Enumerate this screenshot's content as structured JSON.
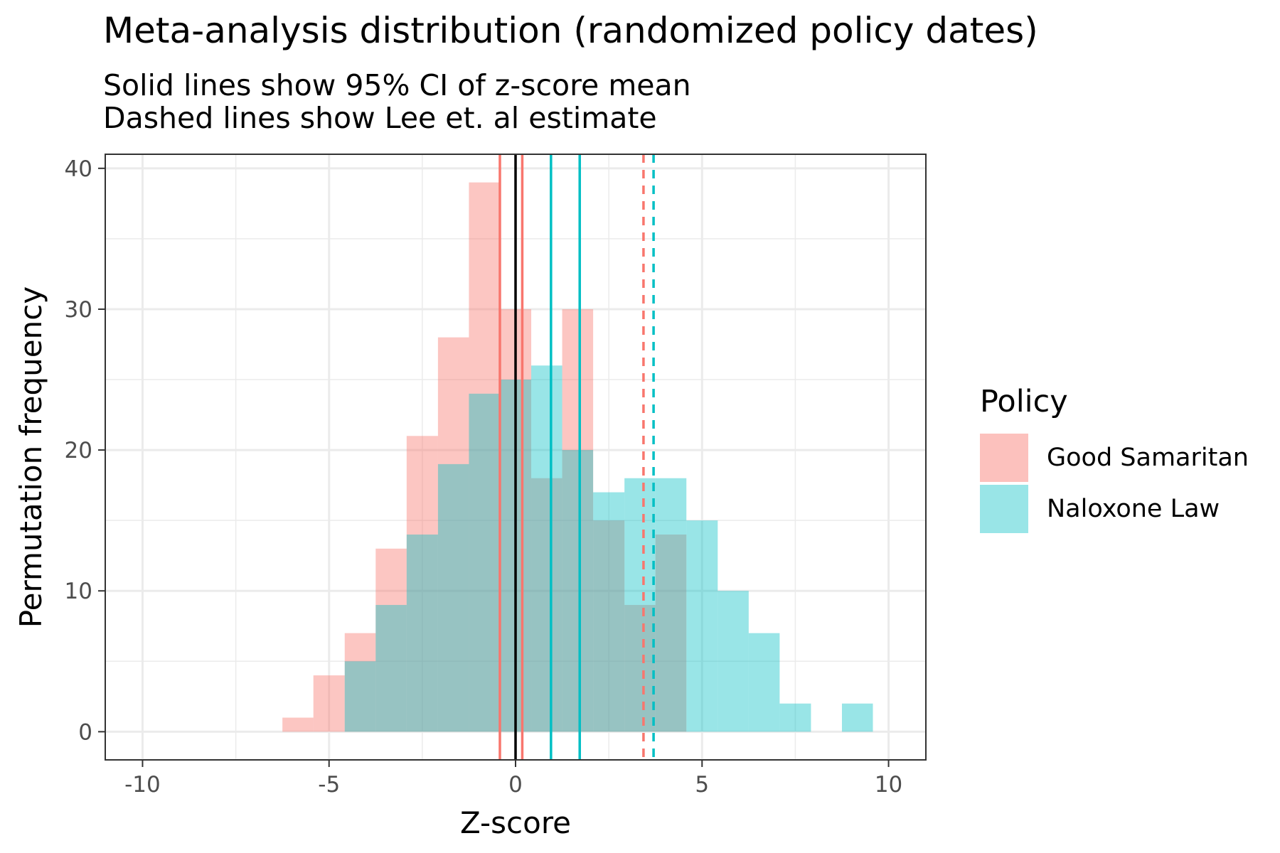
{
  "chart_data": {
    "type": "histogram",
    "title": "Meta-analysis distribution (randomized policy dates)",
    "subtitle_lines": [
      "Solid lines show 95% CI of z-score mean",
      "Dashed lines show Lee et. al estimate"
    ],
    "xlabel": "Z-score",
    "ylabel": "Permutation frequency",
    "xlim": [
      -11,
      11
    ],
    "ylim": [
      -2,
      41
    ],
    "x_ticks": [
      -10,
      -5,
      0,
      5,
      10
    ],
    "x_tick_labels": [
      "-10",
      "-5",
      "0",
      "5",
      "10"
    ],
    "y_ticks": [
      0,
      10,
      20,
      30,
      40
    ],
    "y_tick_labels": [
      "0",
      "10",
      "20",
      "30",
      "40"
    ],
    "grid": true,
    "legend": {
      "title": "Policy",
      "position": "right"
    },
    "bin_edges": [
      -6.25,
      -5.42,
      -4.58,
      -3.75,
      -2.92,
      -2.08,
      -1.25,
      -0.42,
      0.42,
      1.25,
      2.08,
      2.92,
      3.75,
      4.58,
      5.42,
      6.25,
      7.08,
      7.92,
      8.75,
      9.58
    ],
    "series": [
      {
        "name": "Good Samaritan",
        "color": "#F8766D",
        "counts": [
          1,
          4,
          7,
          13,
          21,
          28,
          39,
          30,
          18,
          30,
          15,
          9,
          14,
          0,
          0,
          0,
          0,
          0,
          0
        ],
        "ci_lines": [
          -0.42,
          0.18
        ],
        "estimate_line": 3.43
      },
      {
        "name": "Naloxone Law",
        "color": "#00BFC4",
        "counts": [
          0,
          0,
          5,
          9,
          14,
          19,
          24,
          25,
          26,
          20,
          17,
          18,
          18,
          15,
          10,
          7,
          2,
          0,
          2
        ],
        "ci_lines": [
          0.95,
          1.72
        ],
        "estimate_line": 3.7
      }
    ],
    "reference_line": 0
  }
}
